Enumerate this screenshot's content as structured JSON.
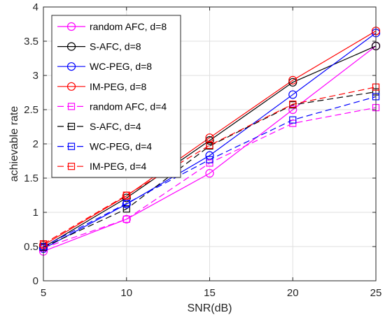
{
  "chart_data": {
    "type": "line",
    "xlabel": "SNR(dB)",
    "ylabel": "achievable rate",
    "xlim": [
      5,
      25
    ],
    "ylim": [
      0,
      4
    ],
    "x_ticks": [
      "5",
      "10",
      "15",
      "20",
      "25"
    ],
    "y_ticks": [
      "0",
      "0.5",
      "1",
      "1.5",
      "2",
      "2.5",
      "3",
      "3.5",
      "4"
    ],
    "grid": true,
    "legend_position": "top-left",
    "x": [
      5,
      10,
      15,
      20,
      25
    ],
    "series": [
      {
        "name": "random AFC, d=8",
        "color": "#ff00ff",
        "dash": "solid",
        "marker": "circle",
        "values": [
          0.43,
          0.9,
          1.57,
          2.5,
          3.43
        ]
      },
      {
        "name": "S-AFC, d=8",
        "color": "#000000",
        "dash": "solid",
        "marker": "circle",
        "values": [
          0.49,
          1.21,
          2.05,
          2.9,
          3.43
        ]
      },
      {
        "name": "WC-PEG, d=8",
        "color": "#0000ff",
        "dash": "solid",
        "marker": "circle",
        "values": [
          0.47,
          1.12,
          1.83,
          2.72,
          3.62
        ]
      },
      {
        "name": "IM-PEG, d=8",
        "color": "#ff0000",
        "dash": "solid",
        "marker": "circle",
        "values": [
          0.52,
          1.24,
          2.09,
          2.93,
          3.65
        ]
      },
      {
        "name": "random AFC, d=4",
        "color": "#ff00ff",
        "dash": "dashed",
        "marker": "square",
        "values": [
          0.48,
          0.9,
          1.72,
          2.3,
          2.53
        ]
      },
      {
        "name": "S-AFC, d=4",
        "color": "#000000",
        "dash": "dashed",
        "marker": "square",
        "values": [
          0.49,
          1.05,
          1.97,
          2.57,
          2.76
        ]
      },
      {
        "name": "WC-PEG, d=4",
        "color": "#0000ff",
        "dash": "dashed",
        "marker": "square",
        "values": [
          0.5,
          1.13,
          1.77,
          2.35,
          2.69
        ]
      },
      {
        "name": "IM-PEG, d=4",
        "color": "#ff0000",
        "dash": "dashed",
        "marker": "square",
        "values": [
          0.54,
          1.25,
          1.98,
          2.58,
          2.83
        ]
      }
    ]
  }
}
